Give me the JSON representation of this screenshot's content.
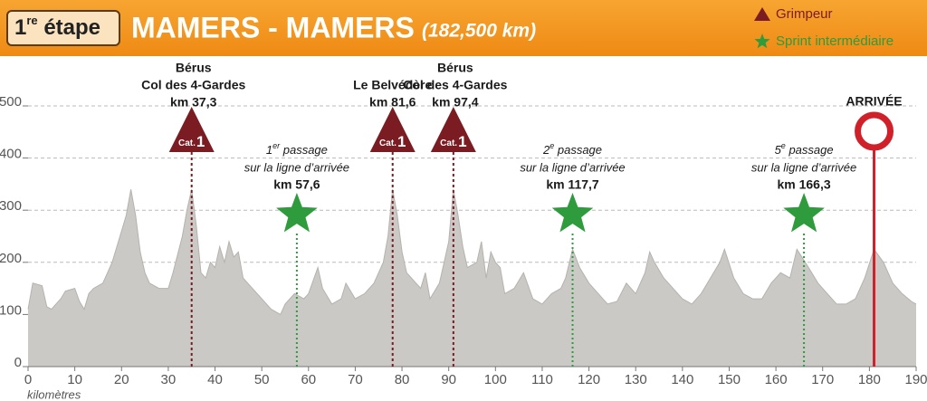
{
  "header": {
    "stage_number": 1,
    "stage_suffix": "re",
    "stage_word": "étape",
    "title": "MAMERS - MAMERS",
    "distance": "(182,500 km)"
  },
  "legend": [
    {
      "label": "Grimpeur",
      "symbol": "triangle",
      "color": "#7a1c22"
    },
    {
      "label": "Sprint intermédiaire",
      "symbol": "star",
      "color": "#2e9b3c"
    }
  ],
  "chart_data": {
    "type": "area",
    "color": "#cbc9c6",
    "grid": true,
    "x_label": "kilomètres",
    "x": [
      0,
      1,
      3,
      4,
      5,
      7,
      8,
      10,
      11,
      12,
      13,
      14,
      16,
      18,
      20,
      21,
      22,
      23,
      24,
      25,
      26,
      28,
      30,
      31,
      33,
      34,
      35,
      36,
      37,
      38,
      39,
      40,
      41,
      42,
      43,
      44,
      45,
      46,
      48,
      50,
      52,
      54,
      55,
      57,
      59,
      60,
      62,
      63,
      65,
      67,
      68,
      70,
      72,
      74,
      76,
      77,
      78,
      79,
      80,
      81,
      82,
      84,
      85,
      86,
      88,
      90,
      91,
      92,
      93,
      94,
      96,
      97,
      98,
      99,
      100,
      101,
      102,
      104,
      106,
      108,
      110,
      112,
      114,
      115,
      116.5,
      118,
      120,
      122,
      124,
      126,
      128,
      130,
      132,
      133,
      134,
      136,
      138,
      140,
      142,
      144,
      146,
      148,
      149,
      151,
      153,
      155,
      157,
      159,
      161,
      163,
      164.5,
      167,
      169,
      171,
      173,
      175,
      177,
      179,
      181,
      183,
      185,
      187,
      189,
      190
    ],
    "values": [
      110,
      160,
      155,
      115,
      110,
      130,
      145,
      150,
      125,
      110,
      140,
      150,
      160,
      200,
      260,
      290,
      340,
      290,
      220,
      180,
      160,
      150,
      150,
      180,
      250,
      300,
      340,
      270,
      180,
      170,
      200,
      190,
      230,
      200,
      240,
      210,
      220,
      170,
      150,
      130,
      110,
      100,
      120,
      140,
      130,
      140,
      190,
      150,
      120,
      130,
      160,
      130,
      140,
      160,
      200,
      250,
      340,
      290,
      220,
      180,
      170,
      150,
      180,
      130,
      160,
      240,
      340,
      290,
      230,
      190,
      200,
      240,
      170,
      220,
      200,
      190,
      140,
      150,
      180,
      130,
      120,
      140,
      150,
      170,
      225,
      190,
      160,
      140,
      120,
      125,
      160,
      140,
      180,
      220,
      200,
      170,
      150,
      130,
      120,
      140,
      170,
      200,
      225,
      170,
      140,
      130,
      130,
      160,
      180,
      170,
      225,
      190,
      160,
      140,
      120,
      120,
      130,
      170,
      225,
      200,
      160,
      140,
      125,
      120
    ],
    "xlim": [
      0,
      190
    ],
    "xticks": [
      0,
      10,
      20,
      30,
      40,
      50,
      60,
      70,
      80,
      90,
      100,
      110,
      120,
      130,
      140,
      150,
      160,
      170,
      180,
      190
    ],
    "ylim": [
      0,
      500
    ],
    "yticks": [
      0,
      100,
      200,
      300,
      400,
      500
    ],
    "climbs": [
      {
        "x": 35,
        "lines": [
          "Bérus",
          "Col des 4-Gardes",
          "km 37,3"
        ],
        "cat_prefix": "Cat.",
        "category": 1
      },
      {
        "x": 78,
        "lines": [
          "Le Belvédère",
          "km 81,6"
        ],
        "cat_prefix": "Cat.",
        "category": 1
      },
      {
        "x": 91,
        "lines": [
          "Bérus",
          "Col des 4-Gardes",
          "km 97,4"
        ],
        "cat_prefix": "Cat.",
        "category": 1
      }
    ],
    "sprints": [
      {
        "x": 57.5,
        "ordinal": 1,
        "suffix": "er",
        "word": "passage",
        "line2": "sur la ligne d’arrivée",
        "km": "km 57,6"
      },
      {
        "x": 116.5,
        "ordinal": 2,
        "suffix": "e",
        "word": "passage",
        "line2": "sur la ligne d’arrivée",
        "km": "km 117,7"
      },
      {
        "x": 166,
        "ordinal": 5,
        "suffix": "e",
        "word": "passage",
        "line2": "sur la ligne d’arrivée",
        "km": "km 166,3"
      }
    ],
    "finish": {
      "x": 181,
      "label": "ARRIVÉE"
    }
  }
}
